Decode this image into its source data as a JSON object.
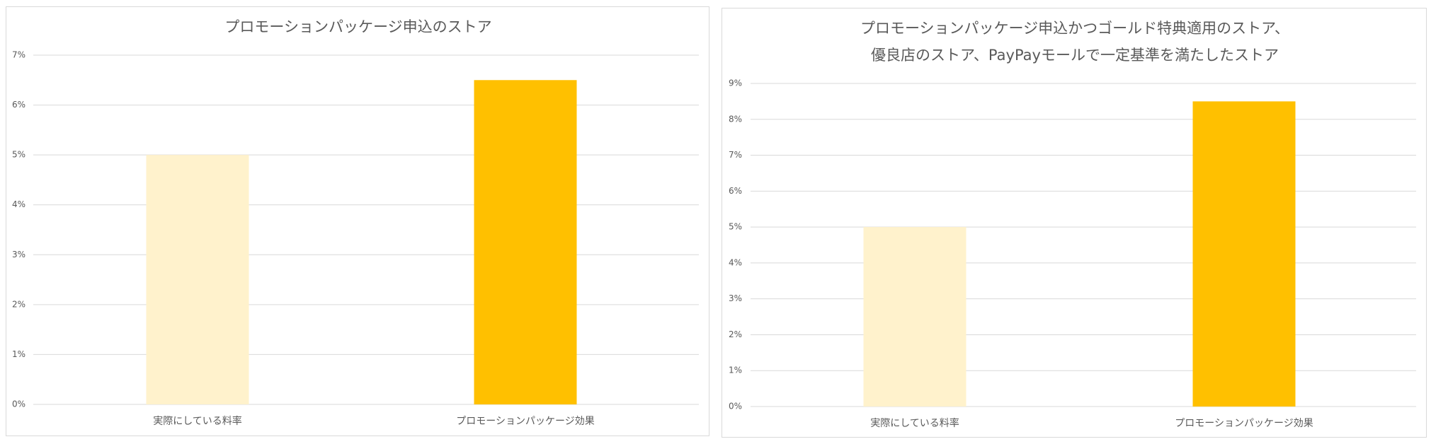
{
  "chart_data": [
    {
      "type": "bar",
      "title": "プロモーションパッケージ申込のストア",
      "categories": [
        "実際にしている料率",
        "プロモーションパッケージ効果"
      ],
      "values": [
        5,
        6.5
      ],
      "bar_colors": [
        "#FFF2CC",
        "#FFC000"
      ],
      "ylim": [
        0,
        7
      ],
      "yticks": [
        "0%",
        "1%",
        "2%",
        "3%",
        "4%",
        "5%",
        "6%",
        "7%"
      ],
      "grid": true,
      "xlabel": "",
      "ylabel": ""
    },
    {
      "type": "bar",
      "title": "プロモーションパッケージ申込かつゴールド特典適用のストア、\n優良店のストア、PayPayモールで一定基準を満たしたストア",
      "title_lines": [
        "プロモーションパッケージ申込かつゴールド特典適用のストア、",
        "優良店のストア、PayPayモールで一定基準を満たしたストア"
      ],
      "categories": [
        "実際にしている料率",
        "プロモーションパッケージ効果"
      ],
      "values": [
        5,
        8.5
      ],
      "bar_colors": [
        "#FFF2CC",
        "#FFC000"
      ],
      "ylim": [
        0,
        9
      ],
      "yticks": [
        "0%",
        "1%",
        "2%",
        "3%",
        "4%",
        "5%",
        "6%",
        "7%",
        "8%",
        "9%"
      ],
      "grid": true,
      "xlabel": "",
      "ylabel": ""
    }
  ]
}
